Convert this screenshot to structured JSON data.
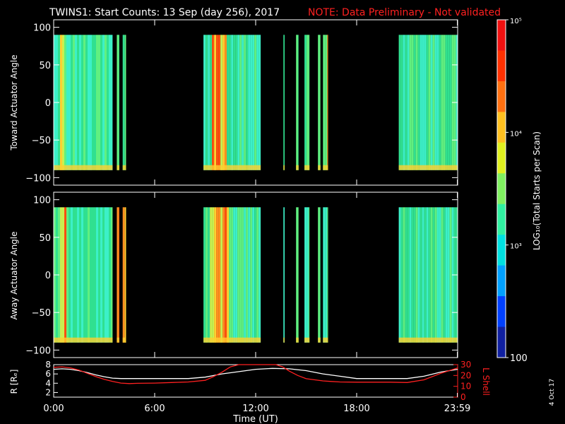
{
  "title": {
    "main": "TWINS1: Start Counts: 13 Sep (day 256), 2017",
    "note": "NOTE: Data Preliminary - Not validated"
  },
  "footer": {
    "date": "4 Oct 17"
  },
  "chart_data": [
    {
      "type": "heatmap",
      "panel": "toward",
      "ylabel": "Toward Actuator Angle",
      "ylim": [
        -110,
        110
      ],
      "yticks": [
        100,
        50,
        0,
        -50,
        -100
      ],
      "yrange_data": [
        -90,
        90
      ],
      "xlim": [
        0,
        24
      ],
      "data_intervals_hours": [
        [
          0.0,
          3.5
        ],
        [
          3.75,
          3.9
        ],
        [
          4.1,
          4.3
        ],
        [
          8.9,
          12.3
        ],
        [
          13.65,
          13.72
        ],
        [
          14.4,
          14.55
        ],
        [
          14.9,
          15.2
        ],
        [
          15.7,
          15.85
        ],
        [
          16.0,
          16.3
        ],
        [
          20.5,
          24.0
        ]
      ],
      "edge_highlights_hours": [
        [
          0.3,
          0.6
        ],
        [
          9.3,
          10.2
        ],
        [
          16.2,
          16.3
        ]
      ],
      "color_levels": [
        "#30e090",
        "#3cf0c8",
        "#60f080",
        "#c8f050",
        "#ffd030",
        "#ff9020",
        "#ff5010"
      ]
    },
    {
      "type": "heatmap",
      "panel": "away",
      "ylabel": "Away Actuator Angle",
      "ylim": [
        -110,
        110
      ],
      "yticks": [
        100,
        50,
        0,
        -50,
        -100
      ],
      "yrange_data": [
        -90,
        90
      ],
      "xlim": [
        0,
        24
      ],
      "data_intervals_hours": [
        [
          0.0,
          3.5
        ],
        [
          3.75,
          3.9
        ],
        [
          4.1,
          4.3
        ],
        [
          8.9,
          12.3
        ],
        [
          13.65,
          13.72
        ],
        [
          14.4,
          14.55
        ],
        [
          14.9,
          15.2
        ],
        [
          15.7,
          15.85
        ],
        [
          16.0,
          16.3
        ],
        [
          20.5,
          24.0
        ]
      ],
      "edge_highlights_hours": [
        [
          0.3,
          0.7
        ],
        [
          9.2,
          10.3
        ],
        [
          3.4,
          4.3
        ]
      ],
      "color_levels": [
        "#30e090",
        "#3cf0c8",
        "#60f080",
        "#c8f050",
        "#ffd030",
        "#ff9020",
        "#ff5010"
      ]
    },
    {
      "type": "line",
      "panel": "orbit",
      "ylabel_left": "R [Rₑ]",
      "ylabel_right": "L Shell",
      "ylim_left": [
        1,
        8
      ],
      "yticks_left": [
        8,
        6,
        4,
        2
      ],
      "ylim_right": [
        0,
        30
      ],
      "yticks_right": [
        30,
        20,
        10,
        0
      ],
      "xlabel": "Time (UT)",
      "xticks": [
        {
          "h": 0,
          "label": "0:00"
        },
        {
          "h": 6,
          "label": "6:00"
        },
        {
          "h": 12,
          "label": "12:00"
        },
        {
          "h": 18,
          "label": "18:00"
        },
        {
          "h": 23.98,
          "label": "23:59"
        }
      ],
      "series": [
        {
          "color": "#ffffff",
          "axis": "left",
          "x": [
            0,
            0.5,
            1,
            1.5,
            2,
            2.5,
            3,
            3.5,
            4,
            4.5,
            5,
            6,
            7,
            8,
            9,
            10,
            11,
            12,
            13,
            14,
            15,
            16,
            17,
            18,
            19,
            20,
            21,
            22,
            23,
            24
          ],
          "y": [
            7.0,
            7.1,
            7.0,
            6.7,
            6.3,
            5.8,
            5.4,
            5.1,
            5.0,
            5.0,
            5.0,
            5.0,
            5.0,
            5.0,
            5.3,
            6.0,
            6.5,
            7.0,
            7.2,
            7.1,
            6.7,
            6.0,
            5.5,
            5.0,
            5.0,
            5.0,
            5.0,
            5.5,
            6.4,
            7.0
          ]
        },
        {
          "color": "#ff2020",
          "axis": "right",
          "x": [
            0,
            0.5,
            1,
            1.5,
            2,
            2.5,
            3,
            3.5,
            4,
            4.5,
            5,
            6,
            7,
            8,
            9,
            9.5,
            10,
            10.5,
            11,
            13.2,
            13.6,
            14,
            14.5,
            15,
            16,
            16.5,
            17,
            18,
            19,
            20,
            21,
            22,
            23,
            24
          ],
          "y": [
            27.5,
            28,
            27,
            25,
            22,
            19,
            16.5,
            14.5,
            13,
            12.5,
            12.8,
            13,
            13.5,
            14,
            15.5,
            19,
            23,
            28,
            31,
            31,
            28,
            24,
            20,
            17,
            15,
            14.5,
            14,
            13.8,
            13.8,
            13.8,
            13.5,
            16,
            22,
            27
          ]
        }
      ]
    },
    {
      "type": "heatmap",
      "panel": "colorbar",
      "ylabel": "LOG₁₀(Total Starts per Scan)",
      "scale": "log",
      "ylim": [
        100,
        100000
      ],
      "ticks": [
        {
          "v": 100000,
          "label": "10⁵"
        },
        {
          "v": 10000,
          "label": "10⁴"
        },
        {
          "v": 1000,
          "label": "10³"
        },
        {
          "v": 100,
          "label": "100"
        }
      ],
      "colors": [
        "#1020a0",
        "#0040ff",
        "#00a0ff",
        "#00e0e0",
        "#30f0a0",
        "#80f060",
        "#e0f020",
        "#ffc020",
        "#ff7010",
        "#ff3000",
        "#f01010"
      ]
    }
  ]
}
